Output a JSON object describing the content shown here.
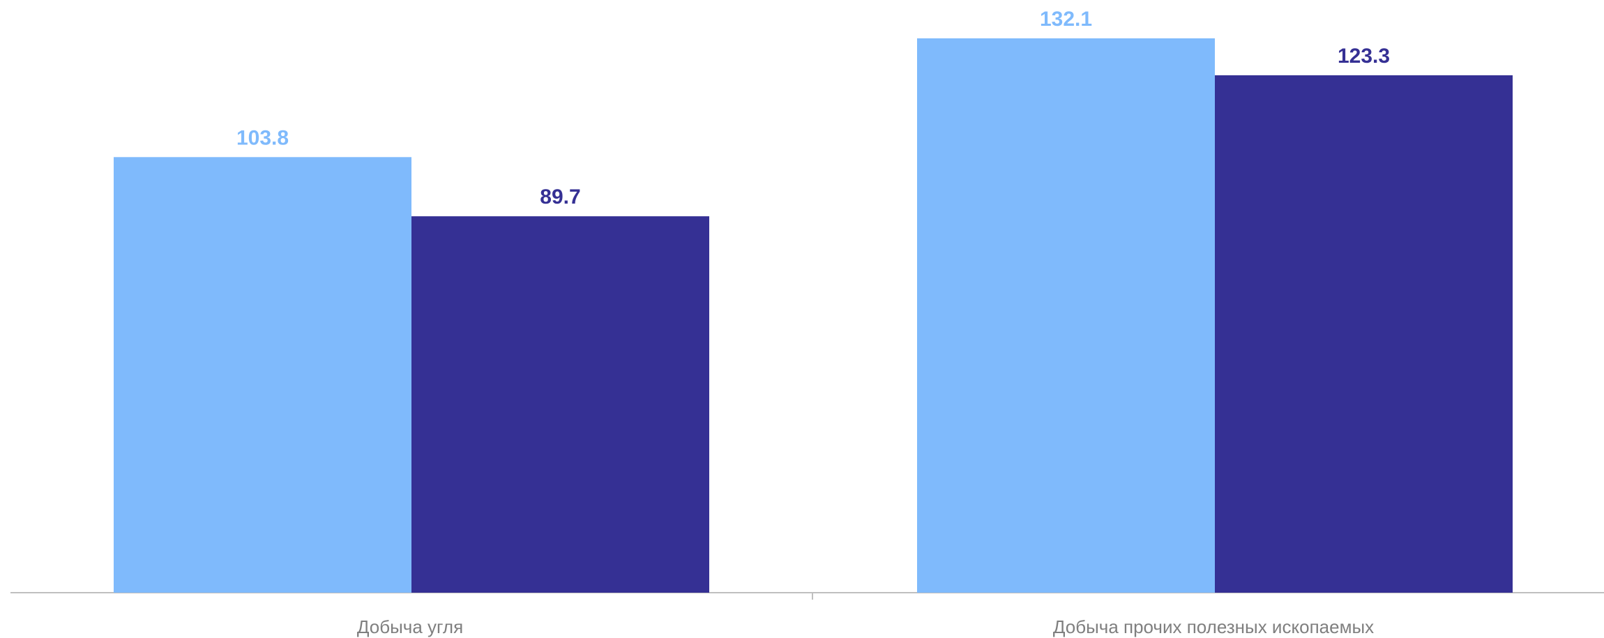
{
  "chart_data": {
    "type": "bar",
    "categories": [
      "Добыча угля",
      "Добыча прочих полезных ископаемых"
    ],
    "series": [
      {
        "color": "#7fbafc",
        "values": [
          103.8,
          132.1
        ]
      },
      {
        "color": "#353094",
        "values": [
          89.7,
          123.3
        ]
      }
    ],
    "title": "",
    "xlabel": "",
    "ylabel": "",
    "ylim": [
      0,
      132.1
    ],
    "grid": false,
    "legend": "none",
    "axis_color": "#bfbfbf",
    "category_label_color": "#7f7f7f"
  }
}
